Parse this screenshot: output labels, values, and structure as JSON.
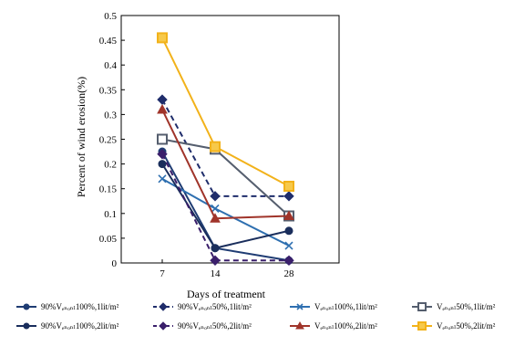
{
  "chart_data": {
    "type": "line",
    "title": "",
    "xlabel": "Days of treatment",
    "ylabel": "Percent of wind erosion(%)",
    "categories": [
      "7",
      "14",
      "28"
    ],
    "ylim": [
      0,
      0.5
    ],
    "yticks": [
      "0",
      "0.05",
      "0.1",
      "0.15",
      "0.2",
      "0.25",
      "0.3",
      "0.35",
      "0.4",
      "0.45",
      "0.5"
    ],
    "grid": false,
    "legend_position": "bottom",
    "series": [
      {
        "name": "90%Vₑₙₒₙₗ100%,1lit/m²",
        "values": [
          0.225,
          0.03,
          0.005
        ],
        "color": "#1f3c73",
        "dash": "solid",
        "marker": "circle"
      },
      {
        "name": "90%Vₑₙₒₙₗ50%,1lit/m²",
        "values": [
          0.33,
          0.135,
          0.135
        ],
        "color": "#1f2d6b",
        "dash": "dashed",
        "marker": "diamond"
      },
      {
        "name": "Vₑₙₒₙₗ100%,1lit/m²",
        "values": [
          0.17,
          0.11,
          0.035
        ],
        "color": "#2e6fb0",
        "dash": "solid",
        "marker": "x"
      },
      {
        "name": "Vₑₙₒₙₗ50%,1lit/m²",
        "values": [
          0.25,
          0.23,
          0.095
        ],
        "color": "#555e6e",
        "dash": "solid",
        "marker": "square"
      },
      {
        "name": "90%Vₑₙₒₙₗ100%,2lit/m²",
        "values": [
          0.2,
          0.03,
          0.065
        ],
        "color": "#1a2e5c",
        "dash": "solid",
        "marker": "circle"
      },
      {
        "name": "90%Vₑₙₒₙₗ50%,2lit/m²",
        "values": [
          0.22,
          0.005,
          0.005
        ],
        "color": "#3a1f6b",
        "dash": "dashed",
        "marker": "diamond"
      },
      {
        "name": "Vₑₙₒₙₗ100%,2lit/m²",
        "values": [
          0.31,
          0.09,
          0.095
        ],
        "color": "#a0342a",
        "dash": "solid",
        "marker": "triangle"
      },
      {
        "name": "Vₑₙₒₙₗ50%,2lit/m²",
        "values": [
          0.455,
          0.235,
          0.155
        ],
        "color": "#f2b21a",
        "dash": "solid",
        "marker": "square"
      }
    ]
  }
}
